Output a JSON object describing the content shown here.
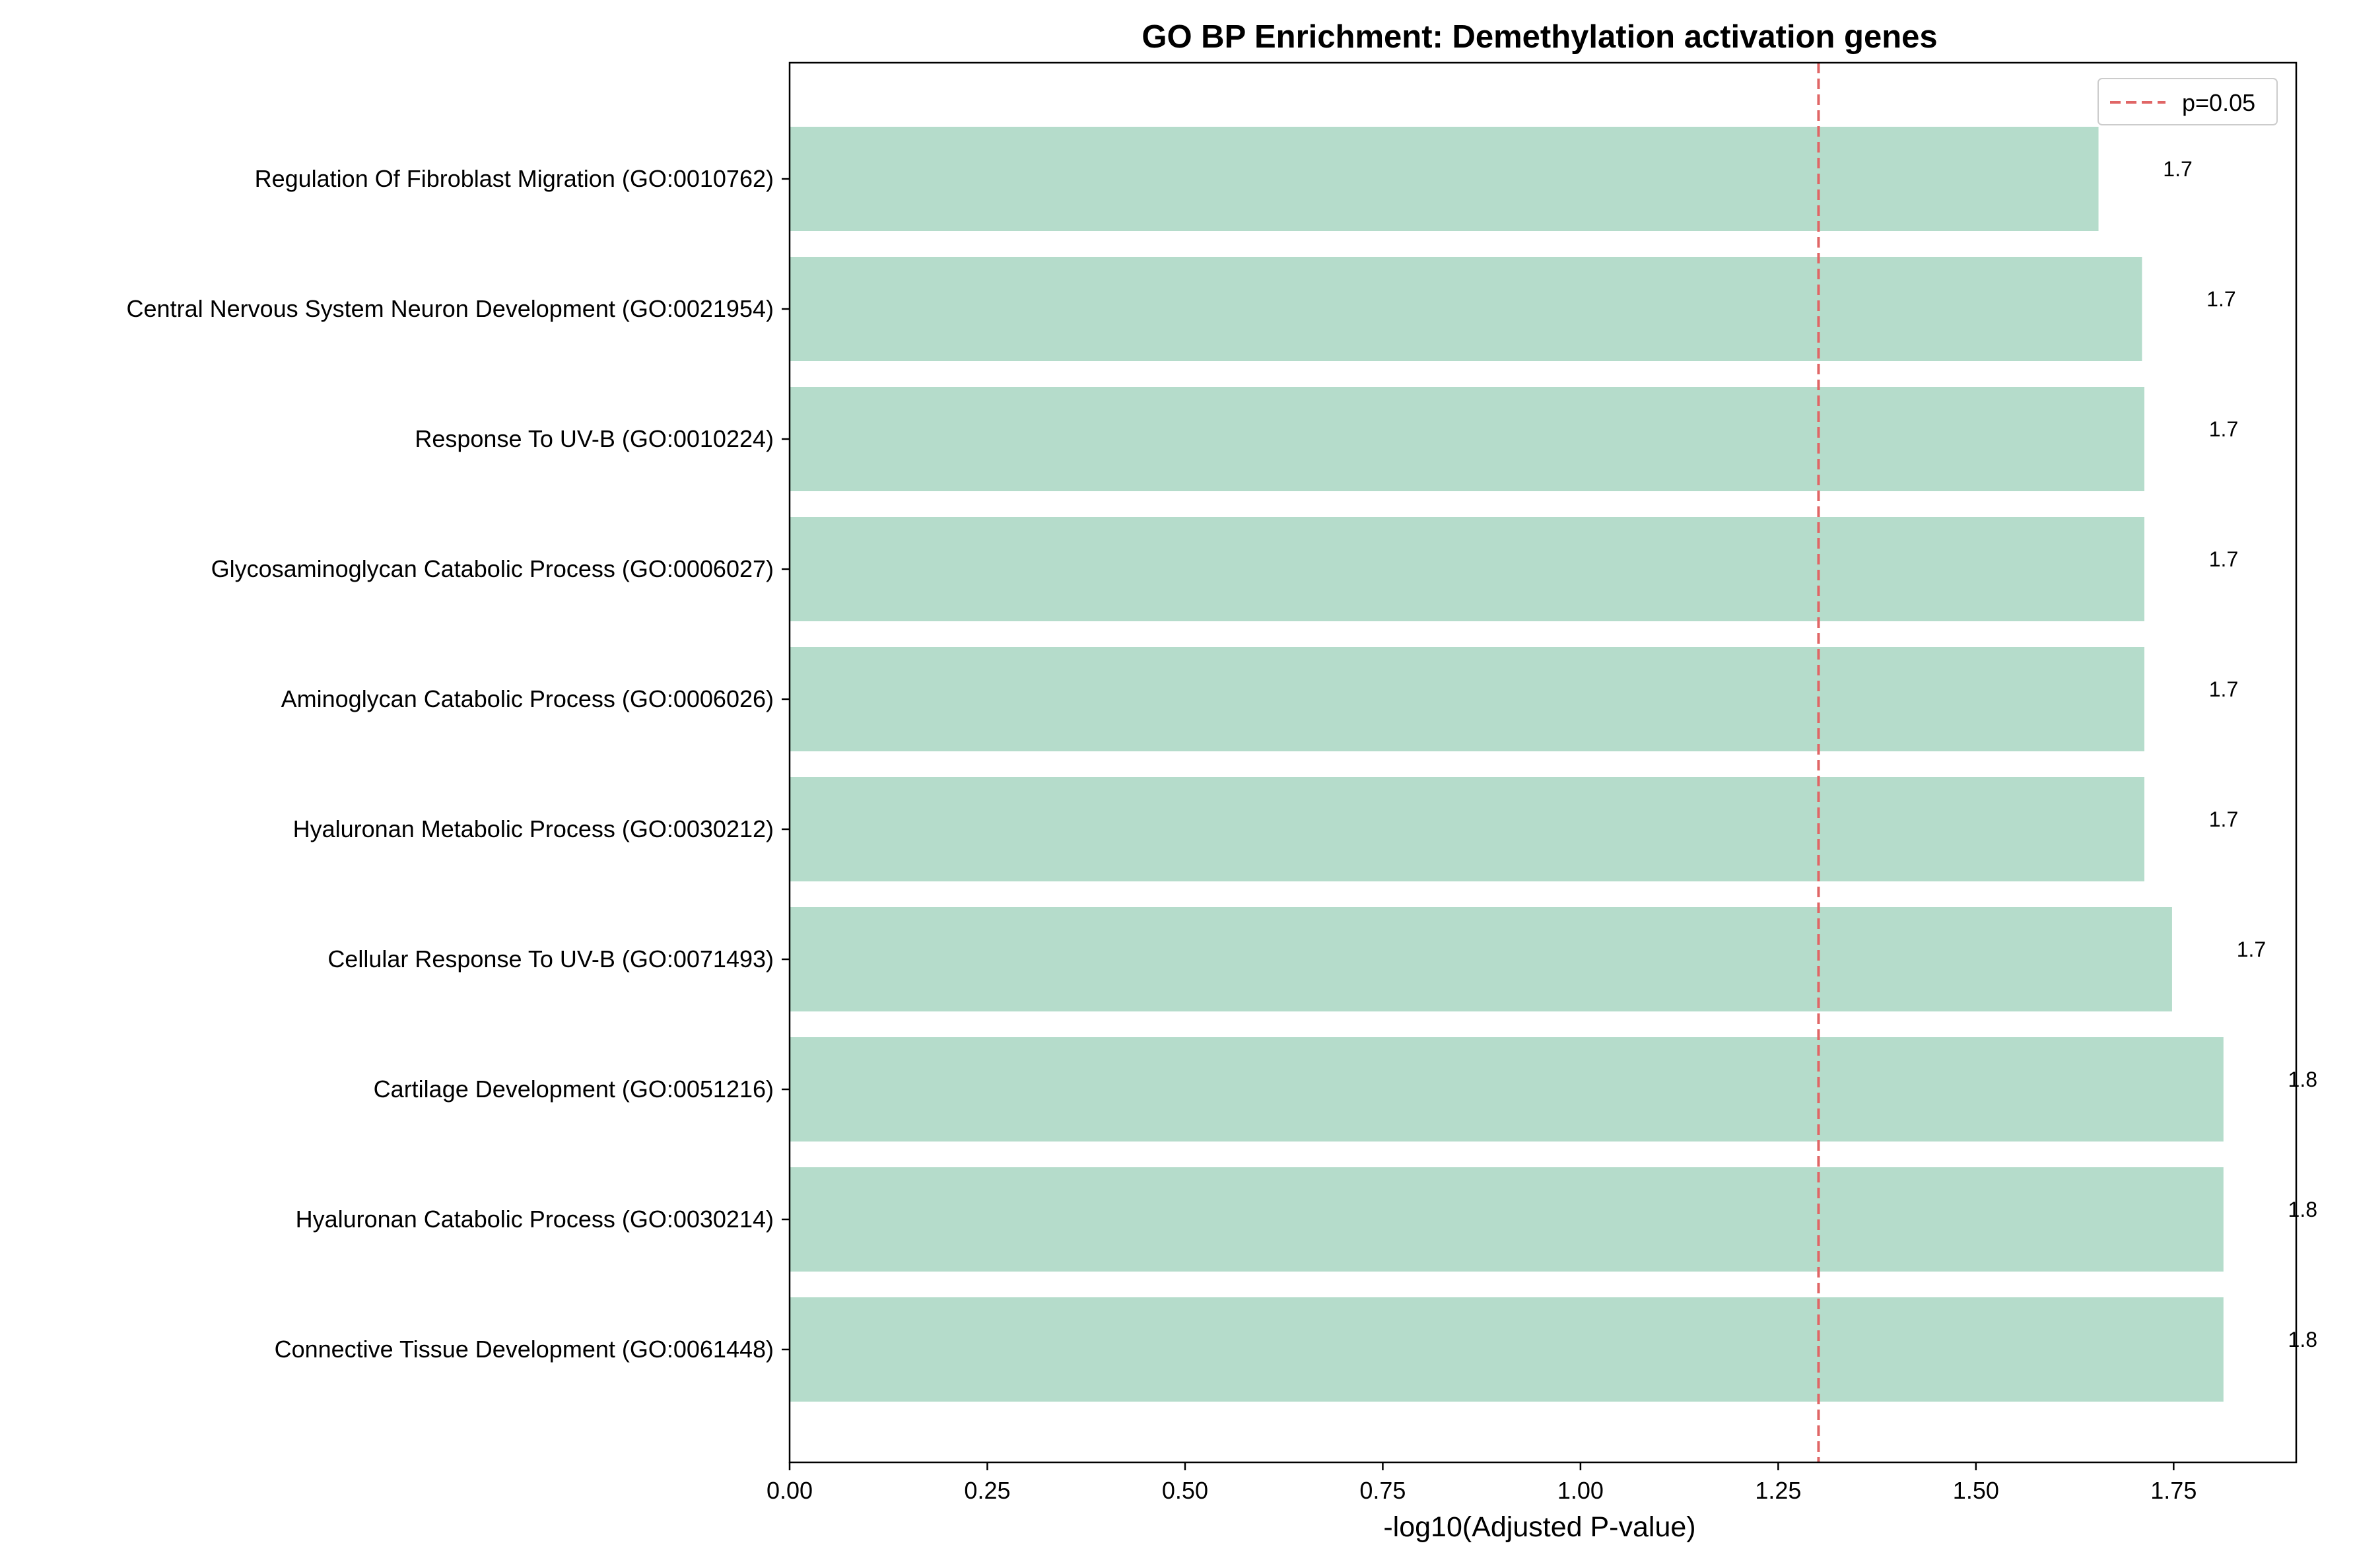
{
  "chart_data": {
    "type": "bar",
    "orientation": "horizontal",
    "title": "GO BP Enrichment: Demethylation activation genes",
    "xlabel": "-log10(Adjusted P-value)",
    "ylabel": "",
    "xlim": [
      0,
      1.905
    ],
    "xticks": [
      "0.00",
      "0.25",
      "0.50",
      "0.75",
      "1.00",
      "1.25",
      "1.50",
      "1.75"
    ],
    "xtick_values": [
      0,
      0.25,
      0.5,
      0.75,
      1.0,
      1.25,
      1.5,
      1.75
    ],
    "categories": [
      "Regulation Of Fibroblast Migration (GO:0010762)",
      "Central Nervous System Neuron Development (GO:0021954)",
      "Response To UV-B (GO:0010224)",
      "Glycosaminoglycan Catabolic Process (GO:0006027)",
      "Aminoglycan Catabolic Process (GO:0006026)",
      "Hyaluronan Metabolic Process (GO:0030212)",
      "Cellular Response To UV-B (GO:0071493)",
      "Cartilage Development (GO:0051216)",
      "Hyaluronan Catabolic Process (GO:0030214)",
      "Connective Tissue Development (GO:0061448)"
    ],
    "values": [
      1.655,
      1.71,
      1.713,
      1.713,
      1.713,
      1.713,
      1.748,
      1.813,
      1.813,
      1.813
    ],
    "value_labels": [
      "1.7",
      "1.7",
      "1.7",
      "1.7",
      "1.7",
      "1.7",
      "1.7",
      "1.8",
      "1.8",
      "1.8"
    ],
    "reference_line": {
      "x": 1.301,
      "label": "p=0.05",
      "style": "dashed",
      "color": "#e06666"
    },
    "legend": {
      "position": "top-right",
      "entries": [
        "p=0.05"
      ]
    },
    "grid": false,
    "colors": {
      "bar": "#b5dccb",
      "threshold": "#e06666",
      "axis": "#000000"
    }
  }
}
